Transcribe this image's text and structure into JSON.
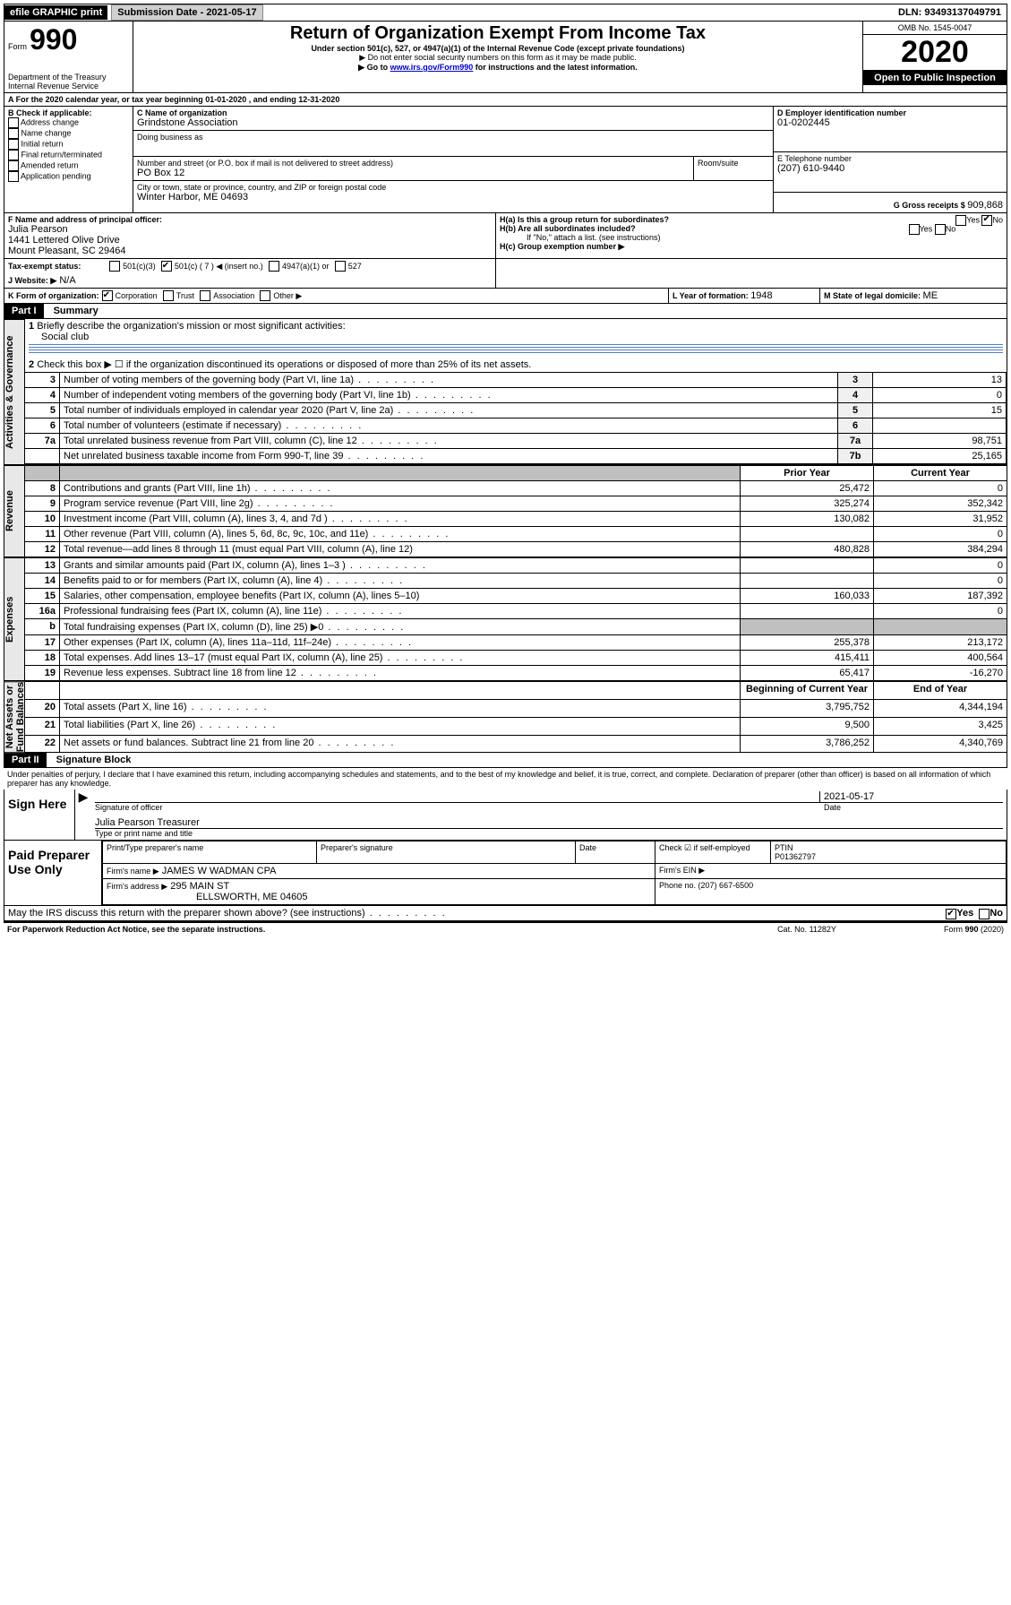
{
  "top": {
    "efile": "efile GRAPHIC print",
    "submission": "Submission Date - 2021-05-17",
    "dln": "DLN: 93493137049791"
  },
  "header": {
    "form_label": "Form",
    "form_num": "990",
    "title": "Return of Organization Exempt From Income Tax",
    "subtitle": "Under section 501(c), 527, or 4947(a)(1) of the Internal Revenue Code (except private foundations)",
    "note1": "▶ Do not enter social security numbers on this form as it may be made public.",
    "note2_pre": "▶ Go to ",
    "note2_link": "www.irs.gov/Form990",
    "note2_post": " for instructions and the latest information.",
    "dept": "Department of the Treasury\nInternal Revenue Service",
    "omb": "OMB No. 1545-0047",
    "year": "2020",
    "inspect": "Open to Public Inspection"
  },
  "sectionA": {
    "a_line": "A For the 2020 calendar year, or tax year beginning 01-01-2020   , and ending 12-31-2020",
    "b_label": "B Check if applicable:",
    "b_opts": [
      "Address change",
      "Name change",
      "Initial return",
      "Final return/terminated",
      "Amended return",
      "Application pending"
    ],
    "c_label": "C Name of organization",
    "c_name": "Grindstone Association",
    "dba_label": "Doing business as",
    "addr_label": "Number and street (or P.O. box if mail is not delivered to street address)",
    "room_label": "Room/suite",
    "addr": "PO Box 12",
    "city_label": "City or town, state or province, country, and ZIP or foreign postal code",
    "city": "Winter Harbor, ME  04693",
    "d_label": "D Employer identification number",
    "d_val": "01-0202445",
    "e_label": "E Telephone number",
    "e_val": "(207) 610-9440",
    "g_label": "G Gross receipts $ ",
    "g_val": "909,868",
    "f_label": "F  Name and address of principal officer:",
    "f_name": "Julia Pearson",
    "f_addr1": "1441 Lettered Olive Drive",
    "f_addr2": "Mount Pleasant, SC  29464",
    "ha_label": "H(a)  Is this a group return for subordinates?",
    "hb_label": "H(b)  Are all subordinates included?",
    "h_note": "If \"No,\" attach a list. (see instructions)",
    "hc_label": "H(c)  Group exemption number ▶",
    "yes": "Yes",
    "no": "No",
    "i_label": "Tax-exempt status:",
    "i_501c3": "501(c)(3)",
    "i_501c": "501(c) ( 7 ) ◀ (insert no.)",
    "i_4947": "4947(a)(1) or",
    "i_527": "527",
    "j_label": "J   Website: ▶",
    "j_val": "N/A",
    "k_label": "K Form of organization:",
    "k_corp": "Corporation",
    "k_trust": "Trust",
    "k_assoc": "Association",
    "k_other": "Other ▶",
    "l_label": "L Year of formation: ",
    "l_val": "1948",
    "m_label": "M State of legal domicile: ",
    "m_val": "ME"
  },
  "part1": {
    "header": "Part I",
    "title": "Summary",
    "side_act": "Activities & Governance",
    "side_rev": "Revenue",
    "side_exp": "Expenses",
    "side_net": "Net Assets or\nFund Balances",
    "l1": "Briefly describe the organization's mission or most significant activities:",
    "l1_val": "Social club",
    "l2": "Check this box ▶ ☐  if the organization discontinued its operations or disposed of more than 25% of its net assets.",
    "rows_gov": [
      {
        "n": "3",
        "t": "Number of voting members of the governing body (Part VI, line 1a)",
        "c": "3",
        "v": "13"
      },
      {
        "n": "4",
        "t": "Number of independent voting members of the governing body (Part VI, line 1b)",
        "c": "4",
        "v": "0"
      },
      {
        "n": "5",
        "t": "Total number of individuals employed in calendar year 2020 (Part V, line 2a)",
        "c": "5",
        "v": "15"
      },
      {
        "n": "6",
        "t": "Total number of volunteers (estimate if necessary)",
        "c": "6",
        "v": ""
      },
      {
        "n": "7a",
        "t": "Total unrelated business revenue from Part VIII, column (C), line 12",
        "c": "7a",
        "v": "98,751"
      },
      {
        "n": "",
        "t": "Net unrelated business taxable income from Form 990-T, line 39",
        "c": "7b",
        "v": "25,165"
      }
    ],
    "hdr_prior": "Prior Year",
    "hdr_curr": "Current Year",
    "rows_rev": [
      {
        "n": "8",
        "t": "Contributions and grants (Part VIII, line 1h)",
        "p": "25,472",
        "c": "0"
      },
      {
        "n": "9",
        "t": "Program service revenue (Part VIII, line 2g)",
        "p": "325,274",
        "c": "352,342"
      },
      {
        "n": "10",
        "t": "Investment income (Part VIII, column (A), lines 3, 4, and 7d )",
        "p": "130,082",
        "c": "31,952"
      },
      {
        "n": "11",
        "t": "Other revenue (Part VIII, column (A), lines 5, 6d, 8c, 9c, 10c, and 11e)",
        "p": "",
        "c": "0"
      },
      {
        "n": "12",
        "t": "Total revenue—add lines 8 through 11 (must equal Part VIII, column (A), line 12)",
        "p": "480,828",
        "c": "384,294"
      }
    ],
    "rows_exp": [
      {
        "n": "13",
        "t": "Grants and similar amounts paid (Part IX, column (A), lines 1–3 )",
        "p": "",
        "c": "0"
      },
      {
        "n": "14",
        "t": "Benefits paid to or for members (Part IX, column (A), line 4)",
        "p": "",
        "c": "0"
      },
      {
        "n": "15",
        "t": "Salaries, other compensation, employee benefits (Part IX, column (A), lines 5–10)",
        "p": "160,033",
        "c": "187,392"
      },
      {
        "n": "16a",
        "t": "Professional fundraising fees (Part IX, column (A), line 11e)",
        "p": "",
        "c": "0"
      },
      {
        "n": "b",
        "t": "Total fundraising expenses (Part IX, column (D), line 25) ▶0",
        "p": "—",
        "c": "—"
      },
      {
        "n": "17",
        "t": "Other expenses (Part IX, column (A), lines 11a–11d, 11f–24e)",
        "p": "255,378",
        "c": "213,172"
      },
      {
        "n": "18",
        "t": "Total expenses. Add lines 13–17 (must equal Part IX, column (A), line 25)",
        "p": "415,411",
        "c": "400,564"
      },
      {
        "n": "19",
        "t": "Revenue less expenses. Subtract line 18 from line 12",
        "p": "65,417",
        "c": "-16,270"
      }
    ],
    "hdr_beg": "Beginning of Current Year",
    "hdr_end": "End of Year",
    "rows_net": [
      {
        "n": "20",
        "t": "Total assets (Part X, line 16)",
        "p": "3,795,752",
        "c": "4,344,194"
      },
      {
        "n": "21",
        "t": "Total liabilities (Part X, line 26)",
        "p": "9,500",
        "c": "3,425"
      },
      {
        "n": "22",
        "t": "Net assets or fund balances. Subtract line 21 from line 20",
        "p": "3,786,252",
        "c": "4,340,769"
      }
    ]
  },
  "part2": {
    "header": "Part II",
    "title": "Signature Block",
    "decl": "Under penalties of perjury, I declare that I have examined this return, including accompanying schedules and statements, and to the best of my knowledge and belief, it is true, correct, and complete. Declaration of preparer (other than officer) is based on all information of which preparer has any knowledge.",
    "sign_here": "Sign Here",
    "sig_officer": "Signature of officer",
    "date": "Date",
    "date_val": "2021-05-17",
    "name_title": "Julia Pearson  Treasurer",
    "type_name": "Type or print name and title",
    "paid": "Paid Preparer Use Only",
    "prep_name_label": "Print/Type preparer's name",
    "prep_sig_label": "Preparer's signature",
    "date_label": "Date",
    "check_self": "Check ☑ if self-employed",
    "ptin_label": "PTIN",
    "ptin": "P01362797",
    "firm_name_label": "Firm's name    ▶",
    "firm_name": "JAMES W WADMAN CPA",
    "firm_ein_label": "Firm's EIN ▶",
    "firm_addr_label": "Firm's address ▶",
    "firm_addr1": "295 MAIN ST",
    "firm_addr2": "ELLSWORTH, ME  04605",
    "phone_label": "Phone no. ",
    "phone": "(207) 667-6500",
    "discuss": "May the IRS discuss this return with the preparer shown above? (see instructions)",
    "paperwork": "For Paperwork Reduction Act Notice, see the separate instructions.",
    "cat": "Cat. No. 11282Y",
    "form_foot": "Form 990 (2020)"
  }
}
